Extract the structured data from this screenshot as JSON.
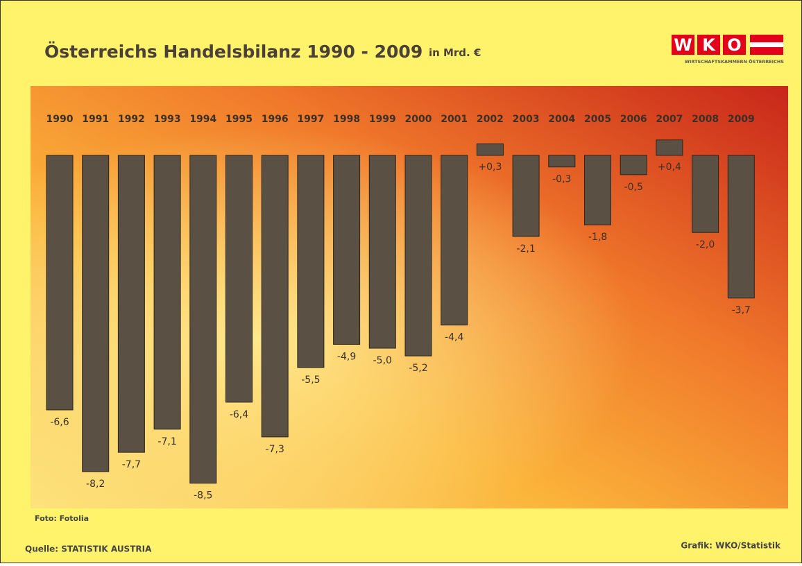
{
  "chart_data": {
    "type": "bar",
    "title": "Österreichs Handelsbilanz 1990 - 2009",
    "subtitle": "in Mrd. €",
    "categories": [
      "1990",
      "1991",
      "1992",
      "1993",
      "1994",
      "1995",
      "1996",
      "1997",
      "1998",
      "1999",
      "2000",
      "2001",
      "2002",
      "2003",
      "2004",
      "2005",
      "2006",
      "2007",
      "2008",
      "2009"
    ],
    "values": [
      -6.6,
      -8.2,
      -7.7,
      -7.1,
      -8.5,
      -6.4,
      -7.3,
      -5.5,
      -4.9,
      -5.0,
      -5.2,
      -4.4,
      0.3,
      -2.1,
      -0.3,
      -1.8,
      -0.5,
      0.4,
      -2.0,
      -3.7
    ],
    "value_labels": [
      "-6,6",
      "-8,2",
      "-7,7",
      "-7,1",
      "-8,5",
      "-6,4",
      "-7,3",
      "-5,5",
      "-4,9",
      "-5,0",
      "-5,2",
      "-4,4",
      "+0,3",
      "-2,1",
      "-0,3",
      "-1,8",
      "-0,5",
      "+0,4",
      "-2,0",
      "-3,7"
    ],
    "color": "#5a5044",
    "photo_credit": "Foto: Fotolia",
    "source": "Quelle: STATISTIK AUSTRIA",
    "credit": "Grafik: WKO/Statistik",
    "logo": {
      "letters": [
        "W",
        "K",
        "O"
      ],
      "caption": "WIRTSCHAFTSKAMMERN ÖSTERREICHS"
    }
  }
}
